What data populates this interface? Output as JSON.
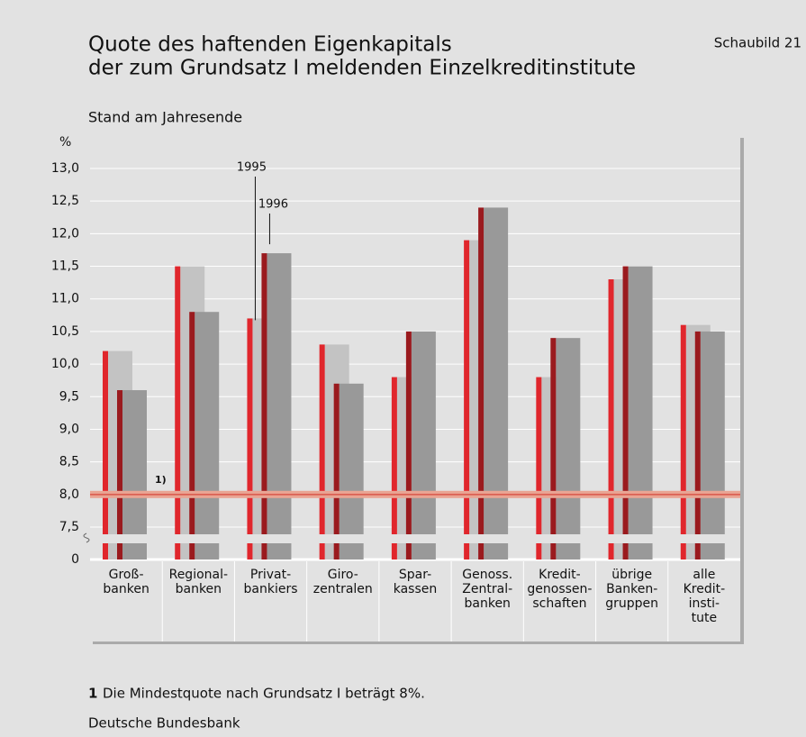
{
  "chart_data": {
    "type": "bar",
    "chart_label": "Schaubild 21",
    "title": [
      "Quote des haftenden Eigenkapitals",
      "der zum Grundsatz I meldenden Einzelkreditinstitute"
    ],
    "subtitle": "Stand am Jahresende",
    "y_unit": "%",
    "categories": [
      [
        "Groß-",
        "banken"
      ],
      [
        "Regional-",
        "banken"
      ],
      [
        "Privat-",
        "bankiers"
      ],
      [
        "Giro-",
        "zentralen"
      ],
      [
        "Spar-",
        "kassen"
      ],
      [
        "Genoss.",
        "Zentral-",
        "banken"
      ],
      [
        "Kredit-",
        "genossen-",
        "schaften"
      ],
      [
        "übrige",
        "Banken-",
        "gruppen"
      ],
      [
        "alle",
        "Kredit-",
        "insti-",
        "tute"
      ]
    ],
    "series": [
      {
        "name": "1995",
        "color": "#e0262c",
        "shadow_color": "#c3c3c3",
        "values": [
          10.2,
          11.5,
          10.7,
          10.3,
          9.8,
          11.9,
          9.8,
          11.3,
          10.6
        ]
      },
      {
        "name": "1996",
        "color": "#9a1a1e",
        "shadow_color": "#999999",
        "values": [
          9.6,
          10.8,
          11.7,
          9.7,
          10.5,
          12.4,
          10.4,
          11.5,
          10.5
        ]
      }
    ],
    "ylim": [
      0,
      13.5
    ],
    "yticks": [
      0,
      {
        "value": 7.5,
        "label": "7,5"
      },
      {
        "value": 8,
        "label": "8,0"
      },
      {
        "value": 8.5,
        "label": "8,5"
      },
      {
        "value": 9,
        "label": "9,0"
      },
      {
        "value": 9.5,
        "label": "9,5"
      },
      {
        "value": 10,
        "label": "10,0"
      },
      {
        "value": 10.5,
        "label": "10,5"
      },
      {
        "value": 11,
        "label": "11,0"
      },
      {
        "value": 11.5,
        "label": "11,5"
      },
      {
        "value": 12,
        "label": "12,0"
      },
      {
        "value": 12.5,
        "label": "12,5"
      },
      {
        "value": 13,
        "label": "13,0"
      }
    ],
    "axis_break": true,
    "grid": true,
    "reference_line": {
      "value": 8,
      "label": "1)"
    },
    "footnote_marker": "1",
    "footnote": "Die Mindestquote nach Grundsatz I beträgt 8%.",
    "source": "Deutsche Bundesbank"
  }
}
